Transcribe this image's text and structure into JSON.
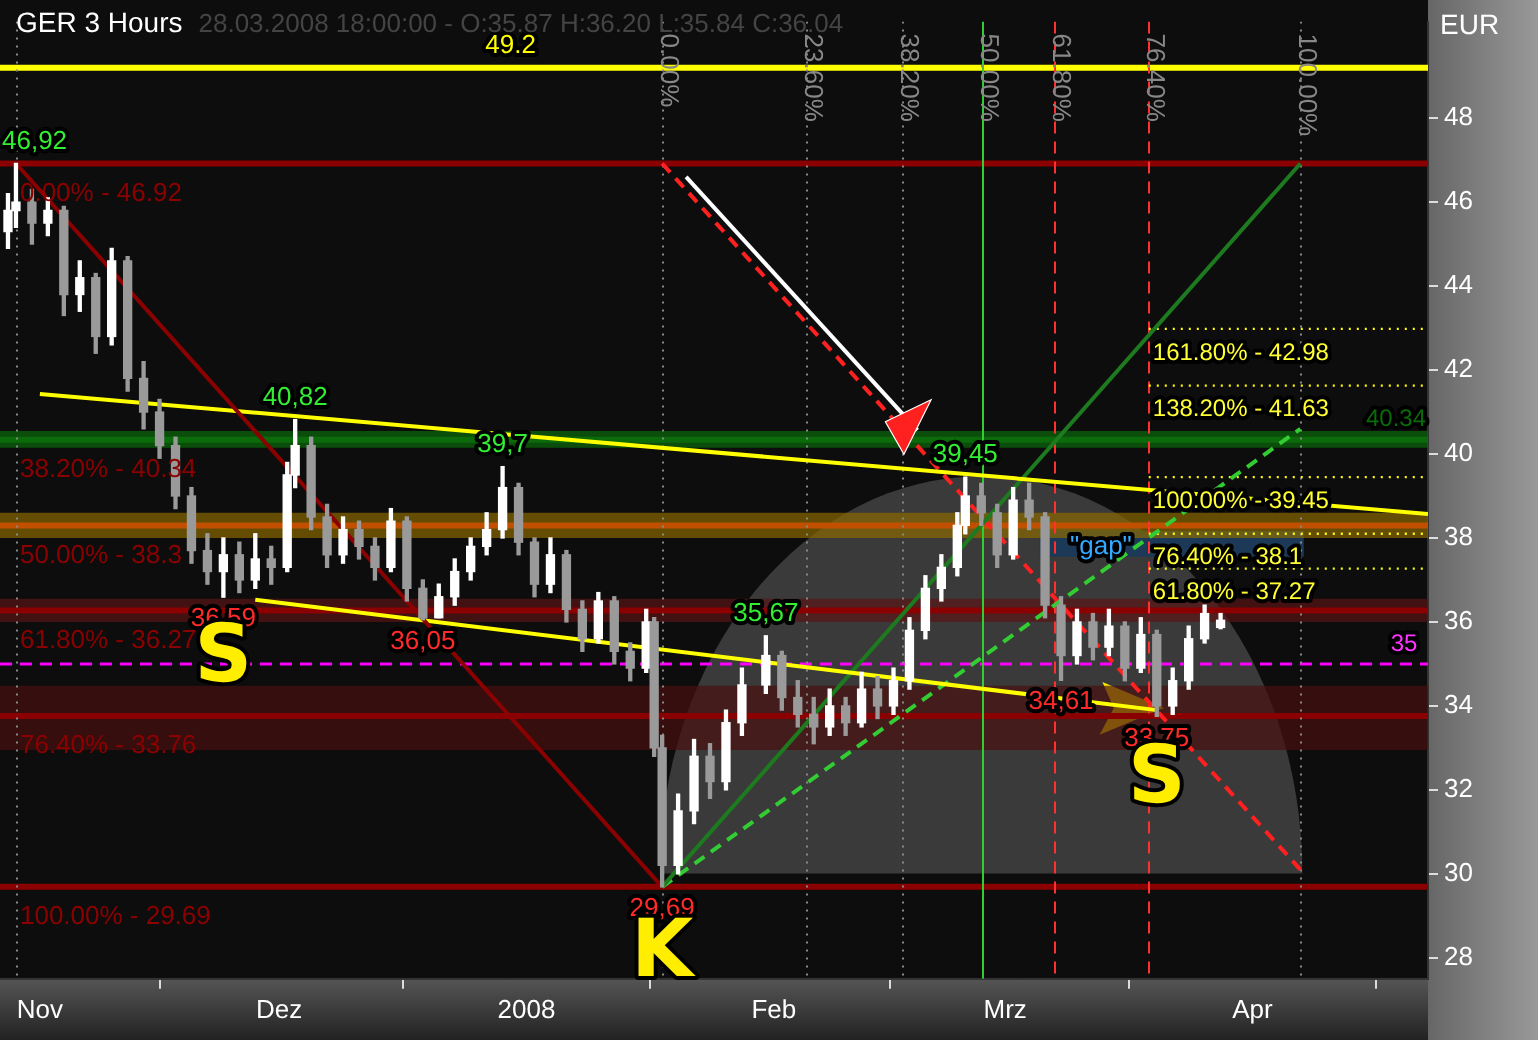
{
  "chart_data": {
    "type": "candlestick",
    "title": "GER 3 Hours",
    "subtitle": "28.03.2008 18:00:00 - O:35.87 H:36.20 L:35.84 C:36.04",
    "ylabel": "EUR",
    "colors": [
      "#ffffff",
      "#ffffff",
      "#9a9a9a",
      "#ffffff",
      "#9a9a9a",
      "#ffffff",
      "#9a9a9a",
      "#ffffff",
      "#9a9a9a",
      "#9a9a9a",
      "#9a9a9a",
      "#9a9a9a",
      "#9a9a9a",
      "#9a9a9a",
      "#ffffff",
      "#9a9a9a",
      "#ffffff",
      "#9a9a9a",
      "#ffffff",
      "#ffffff",
      "#9a9a9a",
      "#9a9a9a",
      "#ffffff",
      "#9a9a9a",
      "#9a9a9a",
      "#ffffff",
      "#9a9a9a",
      "#9a9a9a",
      "#ffffff",
      "#ffffff",
      "#ffffff",
      "#ffffff",
      "#ffffff",
      "#9a9a9a",
      "#9a9a9a",
      "#ffffff",
      "#9a9a9a",
      "#9a9a9a",
      "#ffffff",
      "#9a9a9a",
      "#9a9a9a",
      "#ffffff",
      "#9a9a9a",
      "#9a9a9a",
      "#ffffff",
      "#ffffff",
      "#9a9a9a",
      "#ffffff",
      "#ffffff",
      "#ffffff",
      "#9a9a9a",
      "#9a9a9a",
      "#9a9a9a",
      "#ffffff",
      "#9a9a9a",
      "#ffffff",
      "#9a9a9a",
      "#ffffff",
      "#ffffff",
      "#ffffff",
      "#ffffff",
      "#ffffff",
      "#ffffff",
      "#9a9a9a",
      "#9a9a9a",
      "#ffffff",
      "#9a9a9a",
      "#9a9a9a",
      "#9a9a9a",
      "#ffffff",
      "#9a9a9a",
      "#ffffff",
      "#9a9a9a",
      "#ffffff",
      "#9a9a9a",
      "#ffffff",
      "#ffffff",
      "#ffffff",
      "#ffffff"
    ],
    "x": [
      "2007-10-28",
      "2007-10-29",
      "2007-10-31",
      "2007-11-02",
      "2007-11-04",
      "2007-11-06",
      "2007-11-08",
      "2007-11-10",
      "2007-11-12",
      "2007-11-14",
      "2007-11-16",
      "2007-11-18",
      "2007-11-20",
      "2007-11-22",
      "2007-11-24",
      "2007-11-26",
      "2007-11-28",
      "2007-11-30",
      "2007-12-02",
      "2007-12-03",
      "2007-12-05",
      "2007-12-07",
      "2007-12-09",
      "2007-12-11",
      "2007-12-13",
      "2007-12-15",
      "2007-12-17",
      "2007-12-19",
      "2007-12-21",
      "2007-12-23",
      "2007-12-25",
      "2007-12-27",
      "2007-12-29",
      "2007-12-31",
      "2008-01-02",
      "2008-01-04",
      "2008-01-06",
      "2008-01-08",
      "2008-01-10",
      "2008-01-12",
      "2008-01-14",
      "2008-01-16",
      "2008-01-17",
      "2008-01-18",
      "2008-01-20",
      "2008-01-22",
      "2008-01-24",
      "2008-01-26",
      "2008-01-28",
      "2008-01-31",
      "2008-02-02",
      "2008-02-04",
      "2008-02-06",
      "2008-02-08",
      "2008-02-10",
      "2008-02-12",
      "2008-02-14",
      "2008-02-16",
      "2008-02-18",
      "2008-02-20",
      "2008-02-22",
      "2008-02-24",
      "2008-02-25",
      "2008-02-27",
      "2008-02-29",
      "2008-03-02",
      "2008-03-04",
      "2008-03-06",
      "2008-03-08",
      "2008-03-10",
      "2008-03-12",
      "2008-03-14",
      "2008-03-16",
      "2008-03-18",
      "2008-03-20",
      "2008-03-22",
      "2008-03-24",
      "2008-03-26",
      "2008-03-28"
    ],
    "ohlc": [
      [
        45.3,
        46.2,
        44.9,
        45.8
      ],
      [
        45.8,
        46.92,
        45.4,
        46.0
      ],
      [
        46.0,
        46.3,
        45.0,
        45.5
      ],
      [
        45.5,
        46.1,
        45.2,
        45.8
      ],
      [
        45.8,
        45.9,
        43.3,
        43.8
      ],
      [
        43.8,
        44.6,
        43.4,
        44.2
      ],
      [
        44.2,
        44.3,
        42.4,
        42.8
      ],
      [
        42.8,
        44.9,
        42.6,
        44.6
      ],
      [
        44.6,
        44.7,
        41.5,
        41.8
      ],
      [
        41.8,
        42.2,
        40.6,
        41.0
      ],
      [
        41.0,
        41.3,
        39.9,
        40.2
      ],
      [
        40.2,
        40.4,
        38.7,
        39.0
      ],
      [
        39.0,
        39.2,
        37.4,
        37.7
      ],
      [
        37.7,
        38.1,
        36.9,
        37.2
      ],
      [
        37.2,
        38.0,
        36.59,
        37.6
      ],
      [
        37.6,
        37.9,
        36.7,
        37.0
      ],
      [
        37.0,
        38.1,
        36.8,
        37.5
      ],
      [
        37.5,
        37.8,
        36.9,
        37.3
      ],
      [
        37.3,
        39.8,
        37.2,
        39.5
      ],
      [
        39.5,
        40.82,
        39.2,
        40.2
      ],
      [
        40.2,
        40.4,
        38.2,
        38.5
      ],
      [
        38.5,
        38.8,
        37.3,
        37.6
      ],
      [
        37.6,
        38.5,
        37.4,
        38.2
      ],
      [
        38.2,
        38.4,
        37.5,
        37.8
      ],
      [
        37.8,
        38.0,
        37.0,
        37.3
      ],
      [
        37.3,
        38.7,
        37.2,
        38.4
      ],
      [
        38.4,
        38.5,
        36.5,
        36.8
      ],
      [
        36.8,
        37.0,
        36.05,
        36.1
      ],
      [
        36.1,
        36.9,
        36.1,
        36.6
      ],
      [
        36.6,
        37.5,
        36.4,
        37.2
      ],
      [
        37.2,
        38.0,
        37.0,
        37.8
      ],
      [
        37.8,
        38.6,
        37.6,
        38.2
      ],
      [
        38.2,
        39.7,
        38.0,
        39.2
      ],
      [
        39.2,
        39.3,
        37.6,
        37.9
      ],
      [
        37.9,
        38.0,
        36.6,
        36.9
      ],
      [
        36.9,
        38.0,
        36.7,
        37.6
      ],
      [
        37.6,
        37.7,
        36.0,
        36.3
      ],
      [
        36.3,
        36.5,
        35.3,
        35.6
      ],
      [
        35.6,
        36.7,
        35.5,
        36.5
      ],
      [
        36.5,
        36.6,
        35.0,
        35.3
      ],
      [
        35.3,
        35.5,
        34.6,
        34.9
      ],
      [
        34.9,
        36.3,
        34.8,
        36.0
      ],
      [
        36.0,
        36.1,
        32.8,
        33.0
      ],
      [
        33.0,
        33.3,
        29.69,
        30.2
      ],
      [
        30.2,
        31.9,
        30.0,
        31.5
      ],
      [
        31.5,
        33.2,
        31.2,
        32.8
      ],
      [
        32.8,
        33.1,
        31.8,
        32.2
      ],
      [
        32.2,
        33.9,
        32.0,
        33.6
      ],
      [
        33.6,
        34.9,
        33.3,
        34.5
      ],
      [
        34.5,
        35.67,
        34.3,
        35.2
      ],
      [
        35.2,
        35.3,
        33.9,
        34.2
      ],
      [
        34.2,
        34.6,
        33.5,
        33.8
      ],
      [
        33.8,
        34.2,
        33.1,
        33.5
      ],
      [
        33.5,
        34.4,
        33.3,
        34.0
      ],
      [
        34.0,
        34.2,
        33.3,
        33.6
      ],
      [
        33.6,
        34.8,
        33.5,
        34.4
      ],
      [
        34.4,
        34.7,
        33.7,
        34.0
      ],
      [
        34.0,
        34.9,
        33.8,
        34.6
      ],
      [
        34.6,
        36.1,
        34.4,
        35.8
      ],
      [
        35.8,
        37.1,
        35.6,
        36.8
      ],
      [
        36.8,
        37.6,
        36.5,
        37.3
      ],
      [
        37.3,
        38.6,
        37.1,
        38.3
      ],
      [
        38.3,
        39.45,
        38.1,
        39.0
      ],
      [
        39.0,
        39.3,
        38.3,
        38.6
      ],
      [
        38.6,
        38.8,
        37.3,
        37.6
      ],
      [
        37.6,
        39.2,
        37.5,
        38.9
      ],
      [
        38.9,
        39.3,
        38.2,
        38.5
      ],
      [
        38.5,
        38.6,
        36.1,
        36.4
      ],
      [
        36.4,
        36.6,
        34.61,
        35.2
      ],
      [
        35.2,
        36.3,
        35.0,
        36.0
      ],
      [
        36.0,
        36.2,
        35.1,
        35.4
      ],
      [
        35.4,
        36.3,
        35.2,
        35.9
      ],
      [
        35.9,
        36.0,
        34.6,
        34.9
      ],
      [
        34.9,
        36.1,
        34.8,
        35.7
      ],
      [
        35.7,
        35.8,
        33.75,
        34.0
      ],
      [
        34.0,
        34.9,
        33.8,
        34.6
      ],
      [
        34.6,
        35.9,
        34.4,
        35.6
      ],
      [
        35.6,
        36.4,
        35.5,
        36.2
      ],
      [
        35.87,
        36.2,
        35.84,
        36.04
      ]
    ],
    "series": [
      {
        "type": "line",
        "color": "#8b0000",
        "line_style": "solid",
        "x": [
          "2007-10-29",
          "2008-01-18"
        ],
        "values": [
          46.92,
          29.69
        ]
      },
      {
        "type": "line",
        "color": "#ffff00",
        "line_style": "solid",
        "x": [
          "2007-11-01",
          "2008-04-23"
        ],
        "values": [
          41.43,
          38.57
        ]
      },
      {
        "type": "line",
        "color": "#ffff00",
        "line_style": "solid",
        "x": [
          "2007-11-28",
          "2008-03-20"
        ],
        "values": [
          36.53,
          33.9
        ]
      },
      {
        "type": "line",
        "color": "#1e7a1e",
        "line_style": "solid",
        "x": [
          "2008-01-18",
          "2008-04-07"
        ],
        "values": [
          29.69,
          46.92
        ]
      },
      {
        "type": "line",
        "color": "#33cc33",
        "line_style": "dashed",
        "x": [
          "2008-01-18",
          "2008-04-07"
        ],
        "values": [
          29.69,
          40.6
        ]
      },
      {
        "type": "line",
        "color": "#ff2020",
        "line_style": "dashed",
        "x": [
          "2008-01-18",
          "2008-04-07"
        ],
        "values": [
          46.92,
          30.1
        ]
      },
      {
        "type": "line",
        "color": "#ffffff",
        "line_style": "solid",
        "x": [
          "2008-01-21",
          "2008-02-19"
        ],
        "values": [
          46.6,
          40.57
        ]
      },
      {
        "type": "line",
        "color": "#ffff00",
        "line_style": "dotted",
        "x": [
          "2008-03-19",
          "2008-04-23"
        ],
        "values": [
          42.98,
          42.98
        ]
      },
      {
        "type": "line",
        "color": "#ffff00",
        "line_style": "dotted",
        "x": [
          "2008-03-19",
          "2008-04-23"
        ],
        "values": [
          41.63,
          41.63
        ]
      },
      {
        "type": "line",
        "color": "#ffff00",
        "line_style": "dotted",
        "x": [
          "2008-03-19",
          "2008-04-23"
        ],
        "values": [
          39.45,
          39.45
        ]
      },
      {
        "type": "line",
        "color": "#ffff00",
        "line_style": "dotted",
        "x": [
          "2008-03-19",
          "2008-04-23"
        ],
        "values": [
          38.1,
          38.1
        ]
      },
      {
        "type": "line",
        "color": "#ffff00",
        "line_style": "dotted",
        "x": [
          "2008-03-19",
          "2008-04-23"
        ],
        "values": [
          37.27,
          37.27
        ]
      }
    ],
    "ref_lines": [
      {
        "axis": "y",
        "value": 49.2,
        "color": "#ffff00"
      },
      {
        "axis": "y",
        "value": 46.92,
        "color": "#8b0000"
      },
      {
        "axis": "y",
        "value": 40.34,
        "color": "#0b6b0b"
      },
      {
        "axis": "y",
        "value": 38.3,
        "color": "#c05000"
      },
      {
        "axis": "y",
        "value": 36.27,
        "color": "#8b0000"
      },
      {
        "axis": "y",
        "value": 33.76,
        "color": "#8b0000"
      },
      {
        "axis": "y",
        "value": 29.69,
        "color": "#8b0000"
      },
      {
        "axis": "y",
        "value": 35,
        "color": "#ff00ff",
        "line_style": "dashed"
      },
      {
        "axis": "x",
        "value": "2007-10-29",
        "color": "#888888",
        "line_style": "dotted"
      },
      {
        "axis": "x",
        "value": "2008-01-18",
        "label": "0.00%",
        "color": "#888888",
        "line_style": "dotted"
      },
      {
        "axis": "x",
        "value": "2008-02-05",
        "label": "23.60%",
        "color": "#888888",
        "line_style": "dotted"
      },
      {
        "axis": "x",
        "value": "2008-02-17",
        "label": "38.20%",
        "color": "#888888",
        "line_style": "dotted"
      },
      {
        "axis": "x",
        "value": "2008-02-27",
        "label": "50.00%",
        "color": "#33cc33",
        "line_style": "solid"
      },
      {
        "axis": "x",
        "value": "2008-03-07",
        "label": "61.80%",
        "color": "#ff3030",
        "line_style": "dashed"
      },
      {
        "axis": "x",
        "value": "2008-03-19",
        "label": "76.40%",
        "color": "#ff3030",
        "line_style": "dashed"
      },
      {
        "axis": "x",
        "value": "2008-04-07",
        "label": "100.00%",
        "color": "#888888",
        "line_style": "dotted"
      }
    ],
    "bands": [
      {
        "axis": "y",
        "from": 40.15,
        "to": 40.55,
        "color": "#0b6b0b"
      },
      {
        "axis": "y",
        "from": 38.0,
        "to": 38.6,
        "color": "#8a6a00"
      },
      {
        "axis": "y",
        "from": 36.0,
        "to": 36.55,
        "color": "#5a1414"
      },
      {
        "axis": "y",
        "from": 32.95,
        "to": 34.48,
        "color": "#4a1010"
      }
    ],
    "annotations": [
      {
        "text": "46,92",
        "x": "2007-10-29",
        "y": 46.92
      },
      {
        "text": "40,82",
        "x": "2007-12-03",
        "y": 40.82
      },
      {
        "text": "39,7",
        "x": "2007-12-29",
        "y": 39.7
      },
      {
        "text": "35,67",
        "x": "2008-01-31",
        "y": 35.67
      },
      {
        "text": "39,45",
        "x": "2008-02-25",
        "y": 39.45
      },
      {
        "text": "36,59",
        "x": "2007-11-24",
        "y": 36.59
      },
      {
        "text": "36,05",
        "x": "2007-12-19",
        "y": 36.05
      },
      {
        "text": "34,61",
        "x": "2008-03-08",
        "y": 34.61
      },
      {
        "text": "33,75",
        "x": "2008-03-20",
        "y": 33.75
      },
      {
        "text": "29,69",
        "x": "2008-01-18",
        "y": 29.69
      },
      {
        "text": "S",
        "x": "2007-11-24",
        "y": 35.1
      },
      {
        "text": "S",
        "x": "2008-03-20",
        "y": 32.2
      },
      {
        "text": "K",
        "x": "2008-01-18",
        "y": 28.05
      },
      {
        "text": "49.2",
        "x": "2007-12-30",
        "y": 49.2
      },
      {
        "text": "40.34",
        "x": "2008-04-19",
        "y": 40.34
      },
      {
        "text": "35",
        "x": "2008-04-20",
        "y": 35
      },
      {
        "text": "161.80% - 42.98",
        "x": "2008-03-19",
        "y": 42.98
      },
      {
        "text": "138.20% - 41.63",
        "x": "2008-03-19",
        "y": 41.63
      },
      {
        "text": "100.00% - 39.45",
        "x": "2008-03-19",
        "y": 39.45
      },
      {
        "text": "76.40% - 38.1",
        "x": "2008-03-19",
        "y": 38.1
      },
      {
        "text": "61.80% - 37.27",
        "x": "2008-03-19",
        "y": 37.27
      },
      {
        "text": "\"gap\"",
        "x": "2008-03-13",
        "y": 37.8
      },
      {
        "text": "0.00% - 46.92",
        "x": "2007-10-29",
        "y": 46.92
      },
      {
        "text": "38.20% - 40.34",
        "x": "2007-10-29",
        "y": 40.34
      },
      {
        "text": "50.00% - 38.3",
        "x": "2007-10-29",
        "y": 38.3
      },
      {
        "text": "61.80% - 36.27",
        "x": "2007-10-29",
        "y": 36.27
      },
      {
        "text": "76.40% - 33.76",
        "x": "2007-10-29",
        "y": 33.76
      },
      {
        "text": "100.00% - 29.69",
        "x": "2007-10-29",
        "y": 29.69
      }
    ],
    "xlim": [
      "2007-10-27",
      "2008-04-23"
    ],
    "xticks": [
      {
        "value": "2007-11-01",
        "label": "Nov"
      },
      {
        "value": "2007-12-01",
        "label": "Dez"
      },
      {
        "value": "2008-01-01",
        "label": "2008"
      },
      {
        "value": "2008-02-01",
        "label": "Feb"
      },
      {
        "value": "2008-03-01",
        "label": "Mrz"
      },
      {
        "value": "2008-04-01",
        "label": "Apr"
      }
    ],
    "ylim": [
      27.5,
      50.3
    ],
    "yticks": [
      28,
      30,
      32,
      34,
      36,
      38,
      40,
      42,
      44,
      46,
      48
    ],
    "grid": false,
    "legend": false,
    "marker": "none"
  }
}
